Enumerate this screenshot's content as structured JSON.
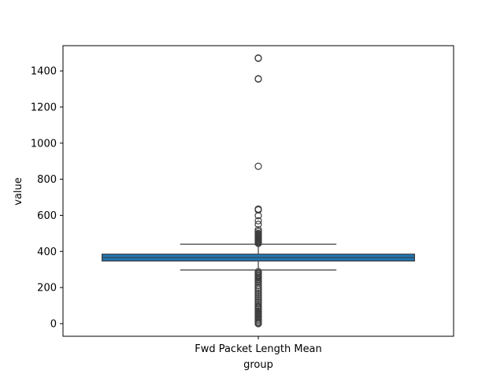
{
  "chart_data": {
    "type": "box",
    "title": "",
    "xlabel": "group",
    "ylabel": "value",
    "categories": [
      "Fwd Packet Length Mean"
    ],
    "ylim": [
      -70,
      1540
    ],
    "yticks": [
      0,
      200,
      400,
      600,
      800,
      1000,
      1200,
      1400
    ],
    "box_color": "#1f77b4",
    "line_color": "#3d3d3d",
    "boxes": [
      {
        "category": "Fwd Packet Length Mean",
        "whisker_low": 297,
        "q1": 347,
        "median": 366,
        "q3": 385,
        "whisker_high": 440,
        "outliers": [
          1472,
          1470,
          1357,
          1355,
          872,
          635,
          630,
          598,
          570,
          550,
          520,
          510,
          500,
          495,
          490,
          485,
          480,
          475,
          470,
          465,
          460,
          455,
          450,
          445,
          288,
          280,
          275,
          268,
          262,
          255,
          248,
          240,
          232,
          225,
          212,
          200,
          190,
          180,
          170,
          160,
          150,
          140,
          130,
          120,
          110,
          100,
          92,
          85,
          78,
          70,
          62,
          55,
          48,
          40,
          33,
          25,
          18,
          10,
          4,
          0
        ]
      }
    ]
  }
}
